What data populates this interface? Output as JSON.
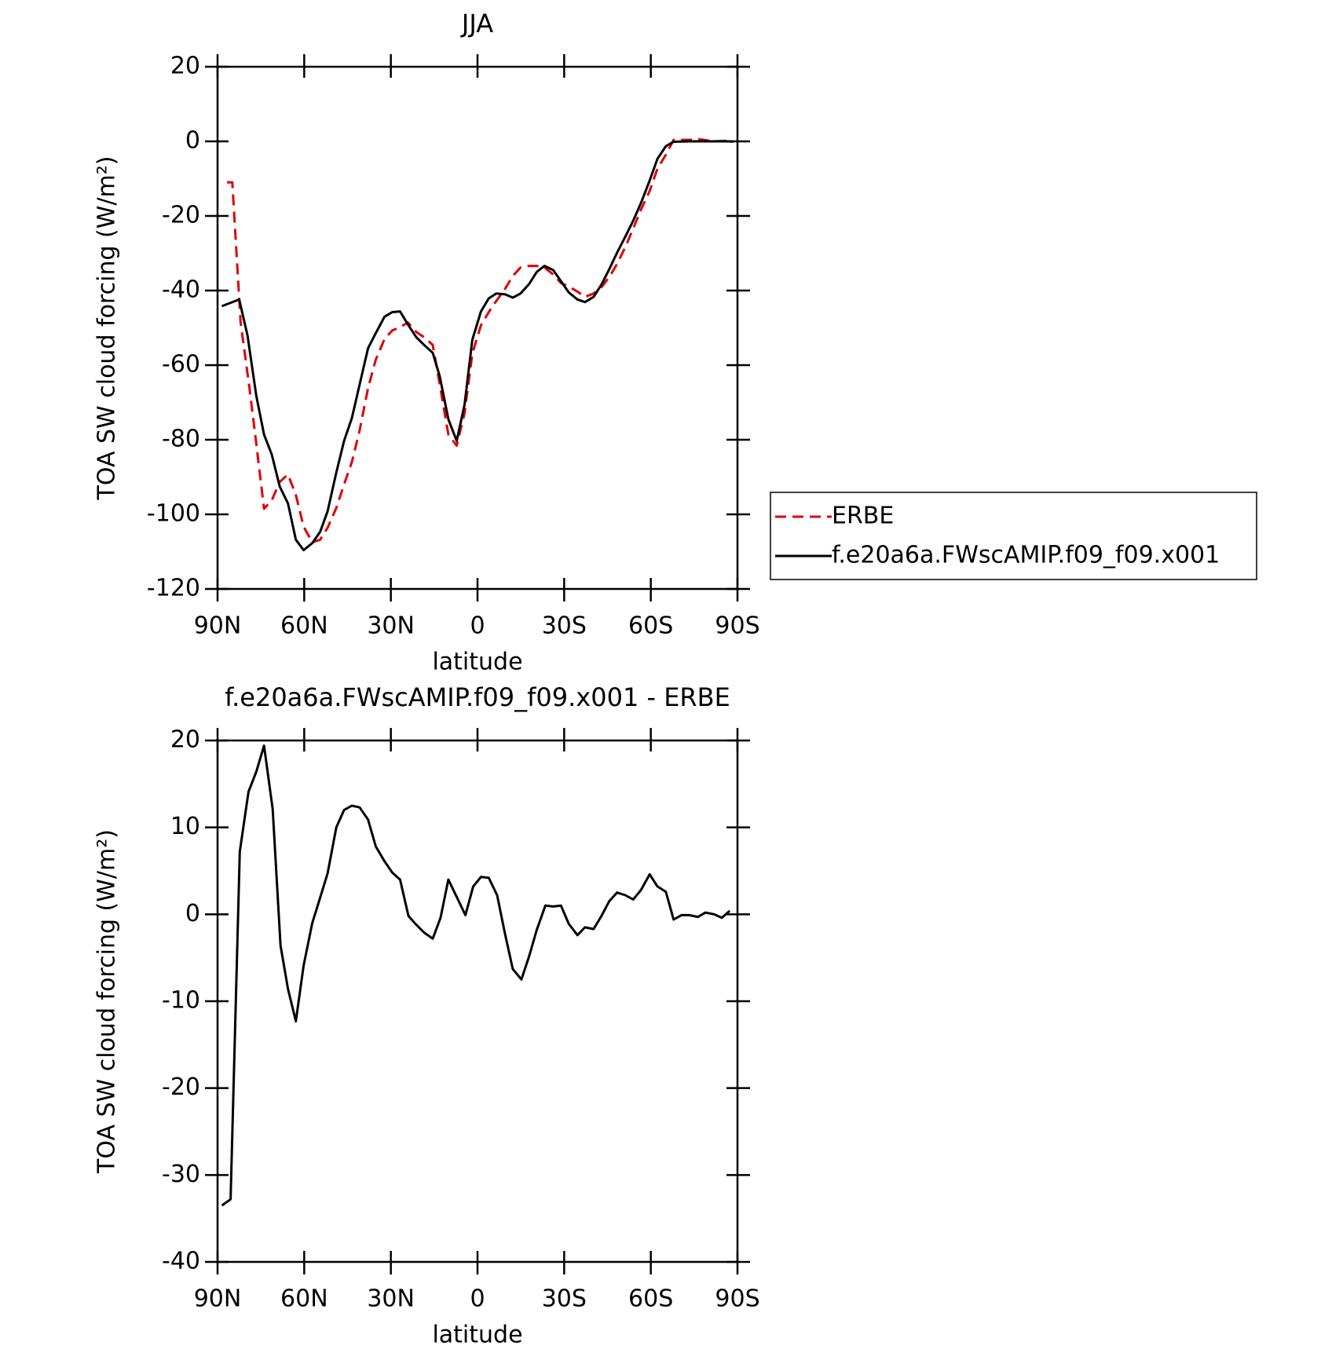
{
  "chart_data": [
    {
      "type": "line",
      "title": "JJA",
      "xlabel": "latitude",
      "ylabel": "TOA SW cloud forcing (W/m²)",
      "xlim": [
        90,
        -90
      ],
      "ylim": [
        20,
        -120
      ],
      "xticks": [
        {
          "value": 90,
          "label": "90N"
        },
        {
          "value": 60,
          "label": "60N"
        },
        {
          "value": 30,
          "label": "30N"
        },
        0,
        {
          "value": -30,
          "label": "30S"
        },
        {
          "value": -60,
          "label": "60S"
        },
        {
          "value": -90,
          "label": "90S"
        }
      ],
      "yticks": [
        20,
        0,
        -20,
        -40,
        -60,
        -80,
        -100,
        -120
      ],
      "legend": "right",
      "series": [
        {
          "name": "ERBE",
          "color": "#e00000",
          "dash": true,
          "x": [
            86.7,
            84.9,
            82,
            79,
            76.6,
            73.9,
            71.2,
            68.5,
            65.6,
            62.9,
            60.2,
            57.2,
            54.5,
            51.9,
            48.9,
            46.2,
            43.5,
            40.8,
            37.9,
            35.2,
            32.2,
            29.5,
            26.8,
            24.1,
            21.2,
            18.5,
            15.5,
            13.1,
            10.1,
            7.2,
            4.5,
            1.8,
            -1.2,
            -3.9,
            -6.5,
            -9.5,
            -12.2,
            -14.9,
            -17.9,
            -20.5,
            -23.2,
            -26.2,
            -28.9,
            -31.6,
            -34.6,
            -37.2,
            -40.2,
            -42.9,
            -45.6,
            -48.3,
            -51.2,
            -53.9,
            -56.6,
            -59.6,
            -62.3,
            -65.2,
            -67.9,
            -73.3,
            -76.3,
            -81.9,
            -87.3,
            -88.5
          ],
          "values": [
            -11,
            -11,
            -48.6,
            -65.9,
            -81,
            -98.5,
            -96.2,
            -91.3,
            -89.3,
            -94.8,
            -103.3,
            -107.5,
            -106.8,
            -103.6,
            -98.3,
            -92,
            -86,
            -77.5,
            -66.2,
            -58.5,
            -53,
            -50.7,
            -49.8,
            -48.6,
            -51.1,
            -52.5,
            -54.6,
            -65,
            -78.6,
            -81.6,
            -72.9,
            -56.9,
            -49.3,
            -45.8,
            -42.8,
            -39.6,
            -36.1,
            -33.8,
            -33.4,
            -33.4,
            -33.8,
            -35.7,
            -38,
            -38.9,
            -40.3,
            -41.7,
            -40.8,
            -39.1,
            -36.4,
            -32.9,
            -28.3,
            -23.4,
            -18.3,
            -13.3,
            -7.3,
            -3.6,
            0.4,
            0.4,
            0.6,
            0,
            0.2,
            0
          ]
        },
        {
          "name": "f.e20a6a.FWscAMIP.f09_f09.x001",
          "color": "#000000",
          "dash": false,
          "x": [
            88.5,
            82.5,
            79.6,
            76.6,
            73.9,
            71.2,
            68.5,
            65.6,
            62.9,
            60.2,
            57.2,
            54.5,
            51.9,
            48.9,
            46.2,
            43.5,
            40.8,
            37.9,
            35.2,
            32.2,
            29.5,
            26.8,
            24.1,
            21.2,
            18.5,
            15.5,
            13.1,
            10.1,
            7.2,
            4.5,
            1.8,
            -1.2,
            -3.9,
            -6.5,
            -9.5,
            -12.2,
            -14.9,
            -17.9,
            -20.5,
            -23.2,
            -26.2,
            -28.9,
            -31.6,
            -34.6,
            -37.2,
            -40.2,
            -42.9,
            -45.6,
            -48.3,
            -51.2,
            -53.9,
            -56.6,
            -59.6,
            -62.3,
            -65.2,
            -67.9,
            -73.3,
            -81.9,
            -87.3,
            -88.5
          ],
          "values": [
            -44.2,
            -42.4,
            -52.1,
            -68.2,
            -78.6,
            -84,
            -92.5,
            -97.1,
            -106.8,
            -109.6,
            -107.7,
            -104.7,
            -99.2,
            -88.8,
            -80.3,
            -74.2,
            -65.2,
            -55.5,
            -51.4,
            -47,
            -45.8,
            -45.6,
            -49.1,
            -52.5,
            -54.6,
            -56.7,
            -62.9,
            -74.5,
            -80.3,
            -70.6,
            -53.2,
            -45.6,
            -42.1,
            -40.8,
            -41,
            -41.9,
            -40.8,
            -38.2,
            -35,
            -33.4,
            -34.5,
            -37.5,
            -40.5,
            -42.4,
            -43.1,
            -41.7,
            -38.4,
            -34.3,
            -29.9,
            -25.5,
            -21.3,
            -16.5,
            -10.5,
            -4.7,
            -1.3,
            -0.1,
            0,
            0,
            0,
            -0.1
          ]
        }
      ]
    },
    {
      "type": "line",
      "title": "f.e20a6a.FWscAMIP.f09_f09.x001 - ERBE",
      "xlabel": "latitude",
      "ylabel": "TOA SW cloud forcing (W/m²)",
      "xlim": [
        90,
        -90
      ],
      "ylim": [
        20,
        -40
      ],
      "xticks": [
        {
          "value": 90,
          "label": "90N"
        },
        {
          "value": 60,
          "label": "60N"
        },
        {
          "value": 30,
          "label": "30N"
        },
        0,
        {
          "value": -30,
          "label": "30S"
        },
        {
          "value": -60,
          "label": "60S"
        },
        {
          "value": -90,
          "label": "90S"
        }
      ],
      "yticks": [
        20,
        10,
        0,
        -10,
        -20,
        -30,
        -40
      ],
      "series": [
        {
          "color": "#000000",
          "dash": false,
          "x": [
            88.5,
            85.5,
            82.3,
            79.3,
            76.6,
            73.9,
            70.9,
            68.2,
            65.6,
            62.9,
            60.2,
            57.2,
            54.5,
            51.9,
            48.9,
            46.2,
            43.5,
            40.8,
            37.9,
            35.2,
            32.2,
            29.5,
            26.8,
            23.9,
            21.2,
            18.5,
            15.5,
            12.8,
            10.1,
            7.2,
            4.2,
            1.5,
            -1.2,
            -3.9,
            -6.8,
            -9.5,
            -12.2,
            -15.2,
            -17.9,
            -20.5,
            -23.5,
            -26.2,
            -28.9,
            -31.6,
            -34.6,
            -37.2,
            -40.2,
            -42.9,
            -45.6,
            -48.3,
            -51.2,
            -53.9,
            -56.6,
            -59.6,
            -62.3,
            -65.2,
            -67.9,
            -70.6,
            -73.3,
            -76.3,
            -78.9,
            -81.9,
            -84.6,
            -87.3
          ],
          "values": [
            -33.5,
            -32.8,
            7.2,
            14.1,
            16.4,
            19.4,
            12.1,
            -3.6,
            -8.6,
            -12.3,
            -5.9,
            -1,
            1.9,
            4.7,
            10,
            12,
            12.5,
            12.3,
            10.9,
            7.8,
            6.1,
            4.8,
            4,
            -0.2,
            -1.2,
            -2.1,
            -2.8,
            -0.4,
            4,
            2,
            -0.1,
            3.2,
            4.3,
            4.2,
            2.2,
            -2.2,
            -6.3,
            -7.5,
            -4.8,
            -1.8,
            1,
            0.9,
            1,
            -1.1,
            -2.4,
            -1.5,
            -1.7,
            -0.2,
            1.5,
            2.5,
            2.2,
            1.7,
            2.8,
            4.6,
            3.2,
            2.6,
            -0.6,
            -0.1,
            -0.1,
            -0.3,
            0.2,
            0,
            -0.4,
            0.4
          ]
        }
      ]
    }
  ]
}
